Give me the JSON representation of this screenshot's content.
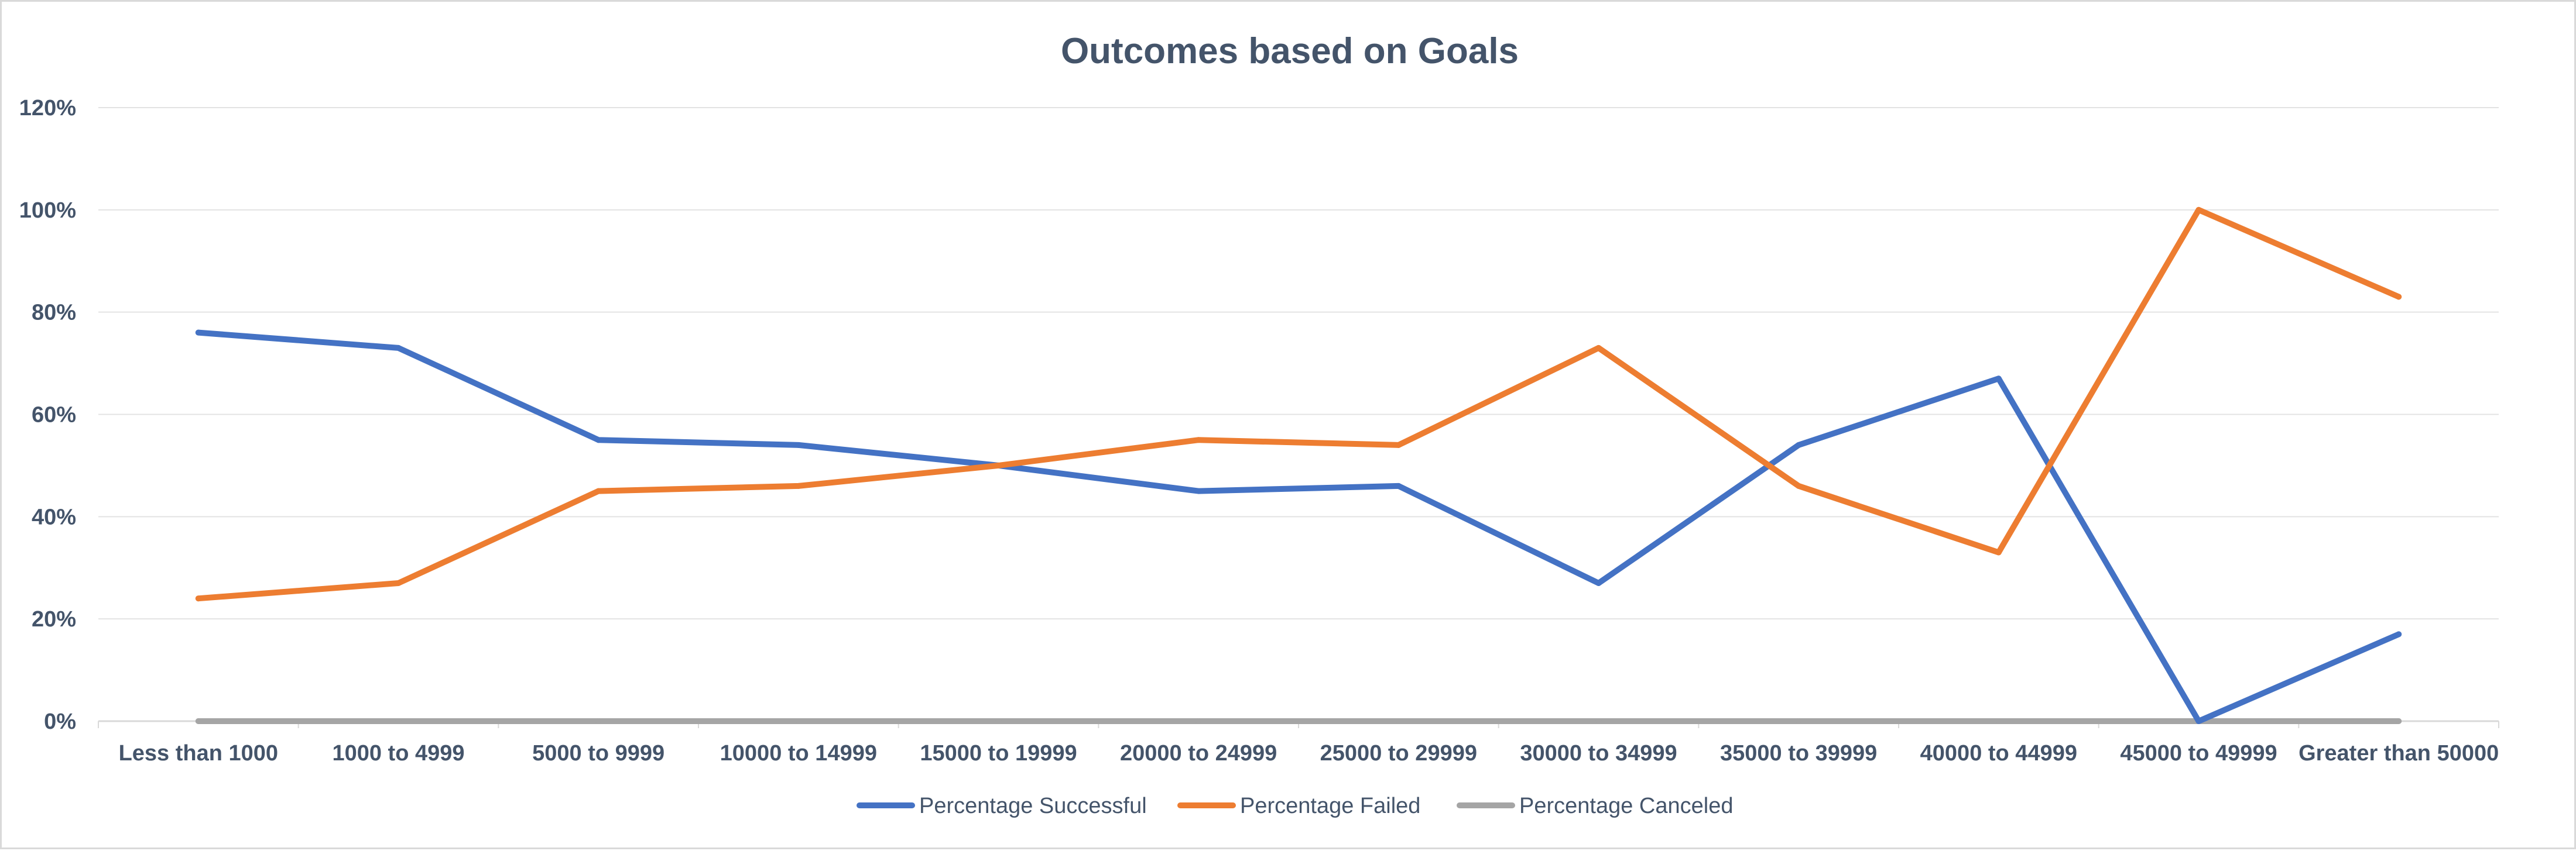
{
  "chart_data": {
    "type": "line",
    "title": "Outcomes based on Goals",
    "xlabel": "",
    "ylabel": "",
    "categories": [
      "Less than 1000",
      "1000 to 4999",
      "5000 to 9999",
      "10000 to 14999",
      "15000 to 19999",
      "20000 to 24999",
      "25000 to 29999",
      "30000 to 34999",
      "35000 to 39999",
      "40000 to 44999",
      "45000 to 49999",
      "Greater than 50000"
    ],
    "series": [
      {
        "name": "Percentage Successful",
        "color": "#4472c4",
        "values": [
          0.76,
          0.73,
          0.55,
          0.54,
          0.5,
          0.45,
          0.46,
          0.27,
          0.54,
          0.67,
          0.0,
          0.17
        ]
      },
      {
        "name": "Percentage Failed",
        "color": "#ed7d31",
        "values": [
          0.24,
          0.27,
          0.45,
          0.46,
          0.5,
          0.55,
          0.54,
          0.73,
          0.46,
          0.33,
          1.0,
          0.83
        ]
      },
      {
        "name": "Percentage Canceled",
        "color": "#a5a5a5",
        "values": [
          0,
          0,
          0,
          0,
          0,
          0,
          0,
          0,
          0,
          0,
          0,
          0
        ]
      }
    ],
    "ylim": [
      0,
      1.2
    ],
    "yticks": [
      0,
      0.2,
      0.4,
      0.6,
      0.8,
      1.0,
      1.2
    ],
    "ytick_labels": [
      "0%",
      "20%",
      "40%",
      "60%",
      "80%",
      "100%",
      "120%"
    ],
    "grid": true,
    "legend_position": "bottom"
  }
}
